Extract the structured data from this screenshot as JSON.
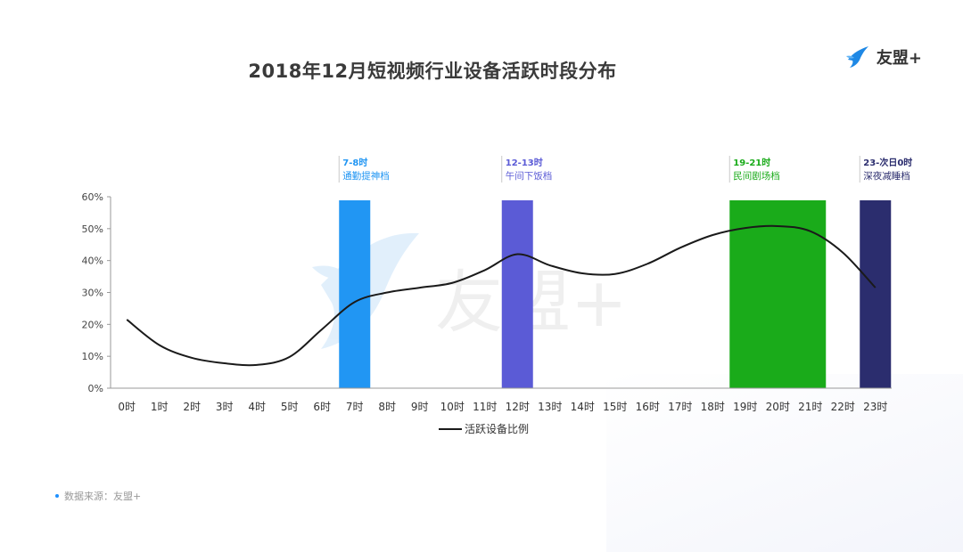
{
  "logo": {
    "text": "友盟+"
  },
  "watermark": {
    "text": "友盟+"
  },
  "source": {
    "text": "数据来源：友盟+"
  },
  "colors": {
    "line": "#1a1a1a",
    "band_commute": "#2196f3",
    "band_lunch": "#5b5bd6",
    "band_drama": "#1aab1a",
    "band_sleep": "#2b2d6e"
  },
  "chart_data": {
    "type": "line",
    "title": "2018年12月短视频行业设备活跃时段分布",
    "categories": [
      "0时",
      "1时",
      "2时",
      "3时",
      "4时",
      "5时",
      "6时",
      "7时",
      "8时",
      "9时",
      "10时",
      "11时",
      "12时",
      "13时",
      "14时",
      "15时",
      "16时",
      "17时",
      "18时",
      "19时",
      "20时",
      "21时",
      "22时",
      "23时"
    ],
    "series": [
      {
        "name": "活跃设备比例",
        "values": [
          21.5,
          13.5,
          9.5,
          7.8,
          7.3,
          9.8,
          18.5,
          27,
          30,
          31.5,
          33,
          37,
          42,
          38.5,
          36,
          35.8,
          39,
          44,
          48,
          50.2,
          50.8,
          49.2,
          42.5,
          31.5
        ]
      }
    ],
    "ylim": [
      0,
      60
    ],
    "yticks": [
      "0%",
      "10%",
      "20%",
      "30%",
      "40%",
      "50%",
      "60%"
    ],
    "highlight_bands": [
      {
        "range": [
          7,
          7
        ],
        "label_time": "7-8时",
        "label_name": "通勤提神档",
        "color": "#2196f3"
      },
      {
        "range": [
          12,
          12
        ],
        "label_time": "12-13时",
        "label_name": "午间下饭档",
        "color": "#5b5bd6"
      },
      {
        "range": [
          19,
          21
        ],
        "label_time": "19-21时",
        "label_name": "民间剧场档",
        "color": "#1aab1a"
      },
      {
        "range": [
          23,
          23
        ],
        "label_time": "23-次日0时",
        "label_name": "深夜减睡档",
        "color": "#2b2d6e"
      }
    ],
    "legend_position": "bottom-center",
    "grid": false
  }
}
